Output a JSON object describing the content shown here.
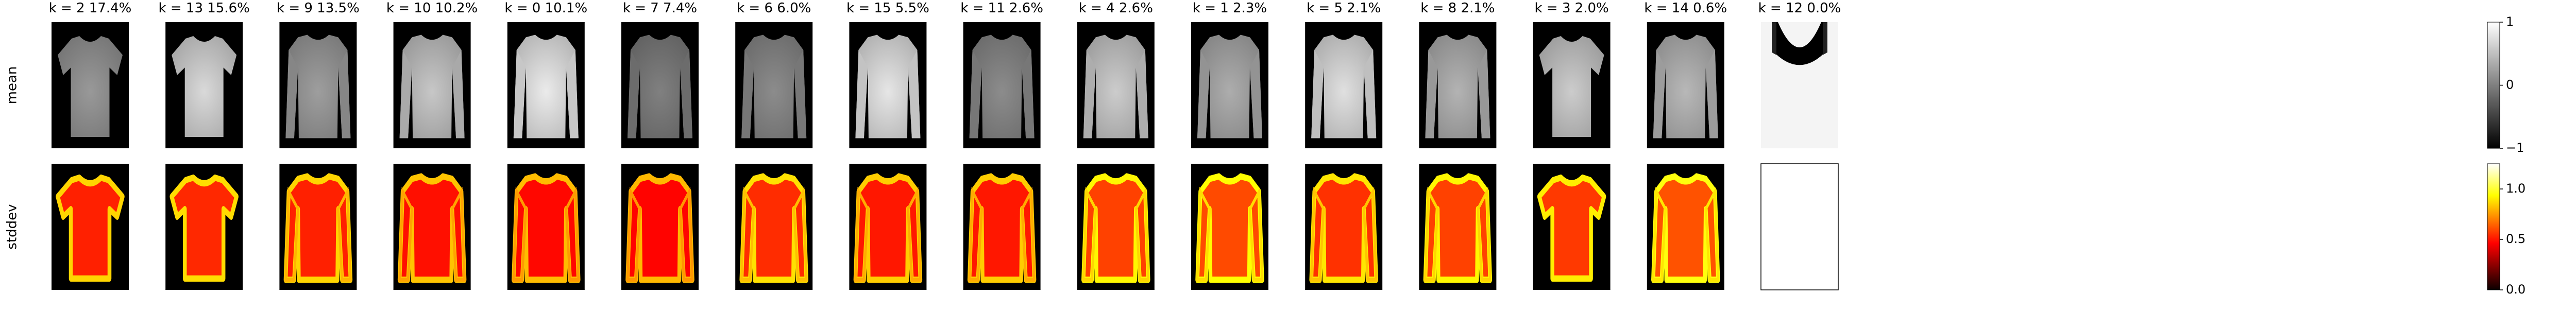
{
  "chart_data": {
    "type": "heatmap",
    "row_labels": [
      "mean",
      "stddev"
    ],
    "panels": [
      {
        "k": "2",
        "pct": "17.4%",
        "shape": "tshirt",
        "mean_brightness": 0.6,
        "std_level": 0.55,
        "std_empty": false
      },
      {
        "k": "13",
        "pct": "15.6%",
        "shape": "tshirt",
        "mean_brightness": 0.85,
        "std_level": 0.6,
        "std_empty": false
      },
      {
        "k": "9",
        "pct": "13.5%",
        "shape": "sweater",
        "mean_brightness": 0.62,
        "std_level": 0.55,
        "std_empty": false
      },
      {
        "k": "10",
        "pct": "10.2%",
        "shape": "sweater",
        "mean_brightness": 0.78,
        "std_level": 0.45,
        "std_empty": false
      },
      {
        "k": "0",
        "pct": "10.1%",
        "shape": "sweater",
        "mean_brightness": 0.92,
        "std_level": 0.4,
        "std_empty": false
      },
      {
        "k": "7",
        "pct": "7.4%",
        "shape": "sweater",
        "mean_brightness": 0.5,
        "std_level": 0.38,
        "std_empty": false
      },
      {
        "k": "6",
        "pct": "6.0%",
        "shape": "sweater",
        "mean_brightness": 0.55,
        "std_level": 0.62,
        "std_empty": false
      },
      {
        "k": "15",
        "pct": "5.5%",
        "shape": "sweater",
        "mean_brightness": 0.9,
        "std_level": 0.5,
        "std_empty": false
      },
      {
        "k": "11",
        "pct": "2.6%",
        "shape": "sweater",
        "mean_brightness": 0.55,
        "std_level": 0.5,
        "std_empty": false
      },
      {
        "k": "4",
        "pct": "2.6%",
        "shape": "sweater",
        "mean_brightness": 0.8,
        "std_level": 0.75,
        "std_empty": false
      },
      {
        "k": "1",
        "pct": "2.3%",
        "shape": "sweater",
        "mean_brightness": 0.68,
        "std_level": 0.8,
        "std_empty": false
      },
      {
        "k": "5",
        "pct": "2.1%",
        "shape": "sweater",
        "mean_brightness": 0.88,
        "std_level": 0.65,
        "std_empty": false
      },
      {
        "k": "8",
        "pct": "2.1%",
        "shape": "sweater",
        "mean_brightness": 0.7,
        "std_level": 0.75,
        "std_empty": false
      },
      {
        "k": "3",
        "pct": "2.0%",
        "shape": "tshirt",
        "mean_brightness": 0.8,
        "std_level": 0.7,
        "std_empty": false
      },
      {
        "k": "14",
        "pct": "0.6%",
        "shape": "sweater",
        "mean_brightness": 0.72,
        "std_level": 0.85,
        "std_empty": false
      },
      {
        "k": "12",
        "pct": "0.0%",
        "shape": "top",
        "mean_brightness": 0.98,
        "std_level": 0.0,
        "std_empty": true
      }
    ],
    "colorbars": [
      {
        "name": "mean",
        "colormap": "gray",
        "ticks": [
          "1",
          "0",
          "−1"
        ],
        "tick_values": [
          1,
          0,
          -1
        ],
        "range": [
          -1,
          1
        ]
      },
      {
        "name": "stddev",
        "colormap": "hot",
        "ticks": [
          "1.0",
          "0.5",
          "0.0"
        ],
        "tick_values": [
          1.0,
          0.5,
          0.0
        ],
        "range": [
          0,
          1.25
        ]
      }
    ]
  }
}
